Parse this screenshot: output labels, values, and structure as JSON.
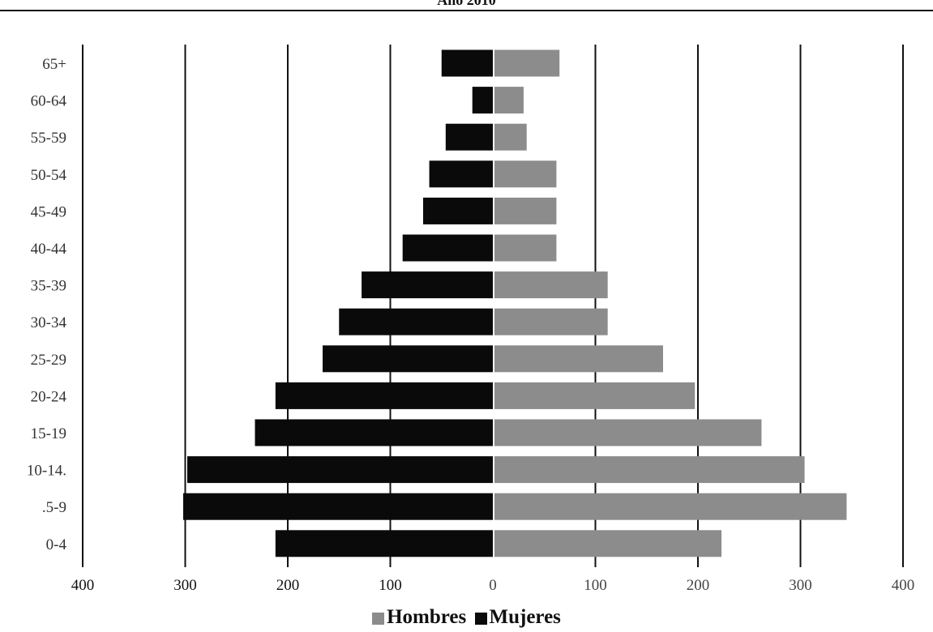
{
  "chart_data": {
    "type": "bar",
    "title": "Año 2010",
    "orientation": "horizontal",
    "categories": [
      "65+",
      "60-64",
      "55-59",
      "50-54",
      "45-49",
      "40-44",
      "35-39",
      "30-34",
      "25-29",
      "20-24",
      "15-19",
      "10-14.",
      ".5-9",
      "0-4"
    ],
    "series": [
      {
        "name": "Hombres",
        "color": "#8c8c8c",
        "side": "right",
        "values": [
          65,
          30,
          33,
          62,
          62,
          62,
          112,
          112,
          166,
          197,
          262,
          304,
          345,
          223
        ]
      },
      {
        "name": "Mujeres",
        "color": "#0a0a0a",
        "side": "left",
        "values": [
          50,
          20,
          46,
          62,
          68,
          88,
          128,
          150,
          166,
          212,
          232,
          298,
          302,
          212
        ]
      }
    ],
    "xticks": [
      "400",
      "300",
      "200",
      "100",
      "0",
      "100",
      "200",
      "300",
      "400"
    ],
    "xlim": [
      -400,
      400
    ],
    "grid": true,
    "legend_position": "bottom"
  }
}
